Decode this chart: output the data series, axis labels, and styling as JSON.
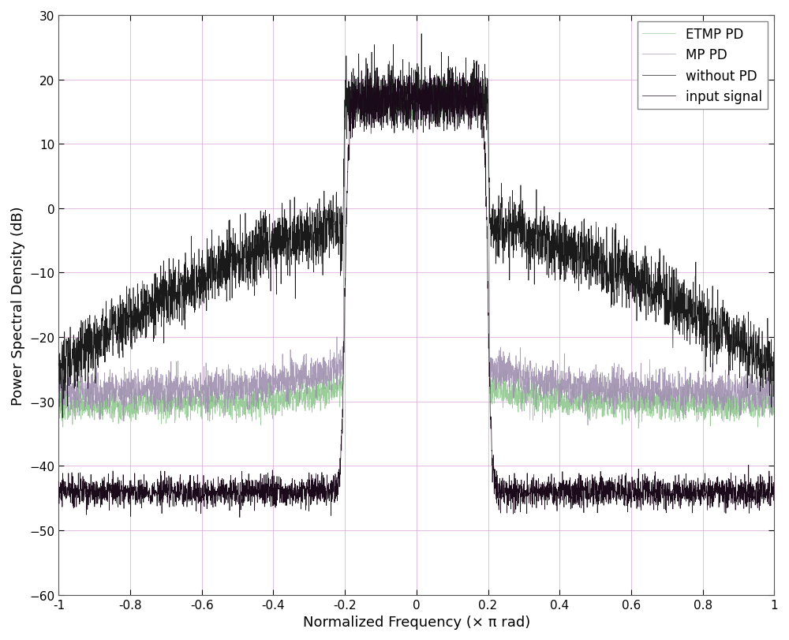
{
  "title": "",
  "xlabel": "Normalized Frequency (× π rad)",
  "ylabel": "Power Spectral Density (dB)",
  "xlim": [
    -1,
    1
  ],
  "ylim": [
    -60,
    30
  ],
  "yticks": [
    -60,
    -50,
    -40,
    -30,
    -20,
    -10,
    0,
    10,
    20,
    30
  ],
  "xticks": [
    -1.0,
    -0.8,
    -0.6,
    -0.4,
    -0.2,
    0.0,
    0.2,
    0.4,
    0.6,
    0.8,
    1.0
  ],
  "xtick_labels": [
    "-1",
    "-0.8",
    "-0.6",
    "-0.4",
    "-0.2",
    "0",
    "0.2",
    "0.4",
    "0.6",
    "0.8",
    "1"
  ],
  "legend_labels": [
    "input signal",
    "without PD",
    "ETMP PD",
    "MP PD"
  ],
  "colors": {
    "input_signal": "#1a0a1a",
    "without_pd": "#1a1a1a",
    "etmp_pd": "#90c890",
    "mp_pd": "#a090b0"
  },
  "linewidths": {
    "input_signal": 0.5,
    "without_pd": 0.5,
    "etmp_pd": 0.5,
    "mp_pd": 0.5
  },
  "grid_color": "#d8a0d8",
  "grid_alpha": 0.7,
  "background_color": "#ffffff",
  "n_points": 4096,
  "passband": 0.2,
  "signal_level_mean": 17.0,
  "signal_level_noise": 2.0,
  "input_oob_mean": -44.0,
  "input_oob_noise": 1.2,
  "input_transition_steepness": 80,
  "without_pd_peak_near_band": -3.0,
  "without_pd_far_level": -25.0,
  "without_pd_noise": 2.5,
  "without_pd_shape_power": 1.5,
  "etmp_pd_oob_mean": -30.5,
  "etmp_pd_oob_noise": 1.2,
  "etmp_pd_near_band_bump": 3.0,
  "mp_pd_oob_mean": -28.5,
  "mp_pd_oob_noise": 1.5,
  "mp_pd_near_band_bump": 4.0
}
